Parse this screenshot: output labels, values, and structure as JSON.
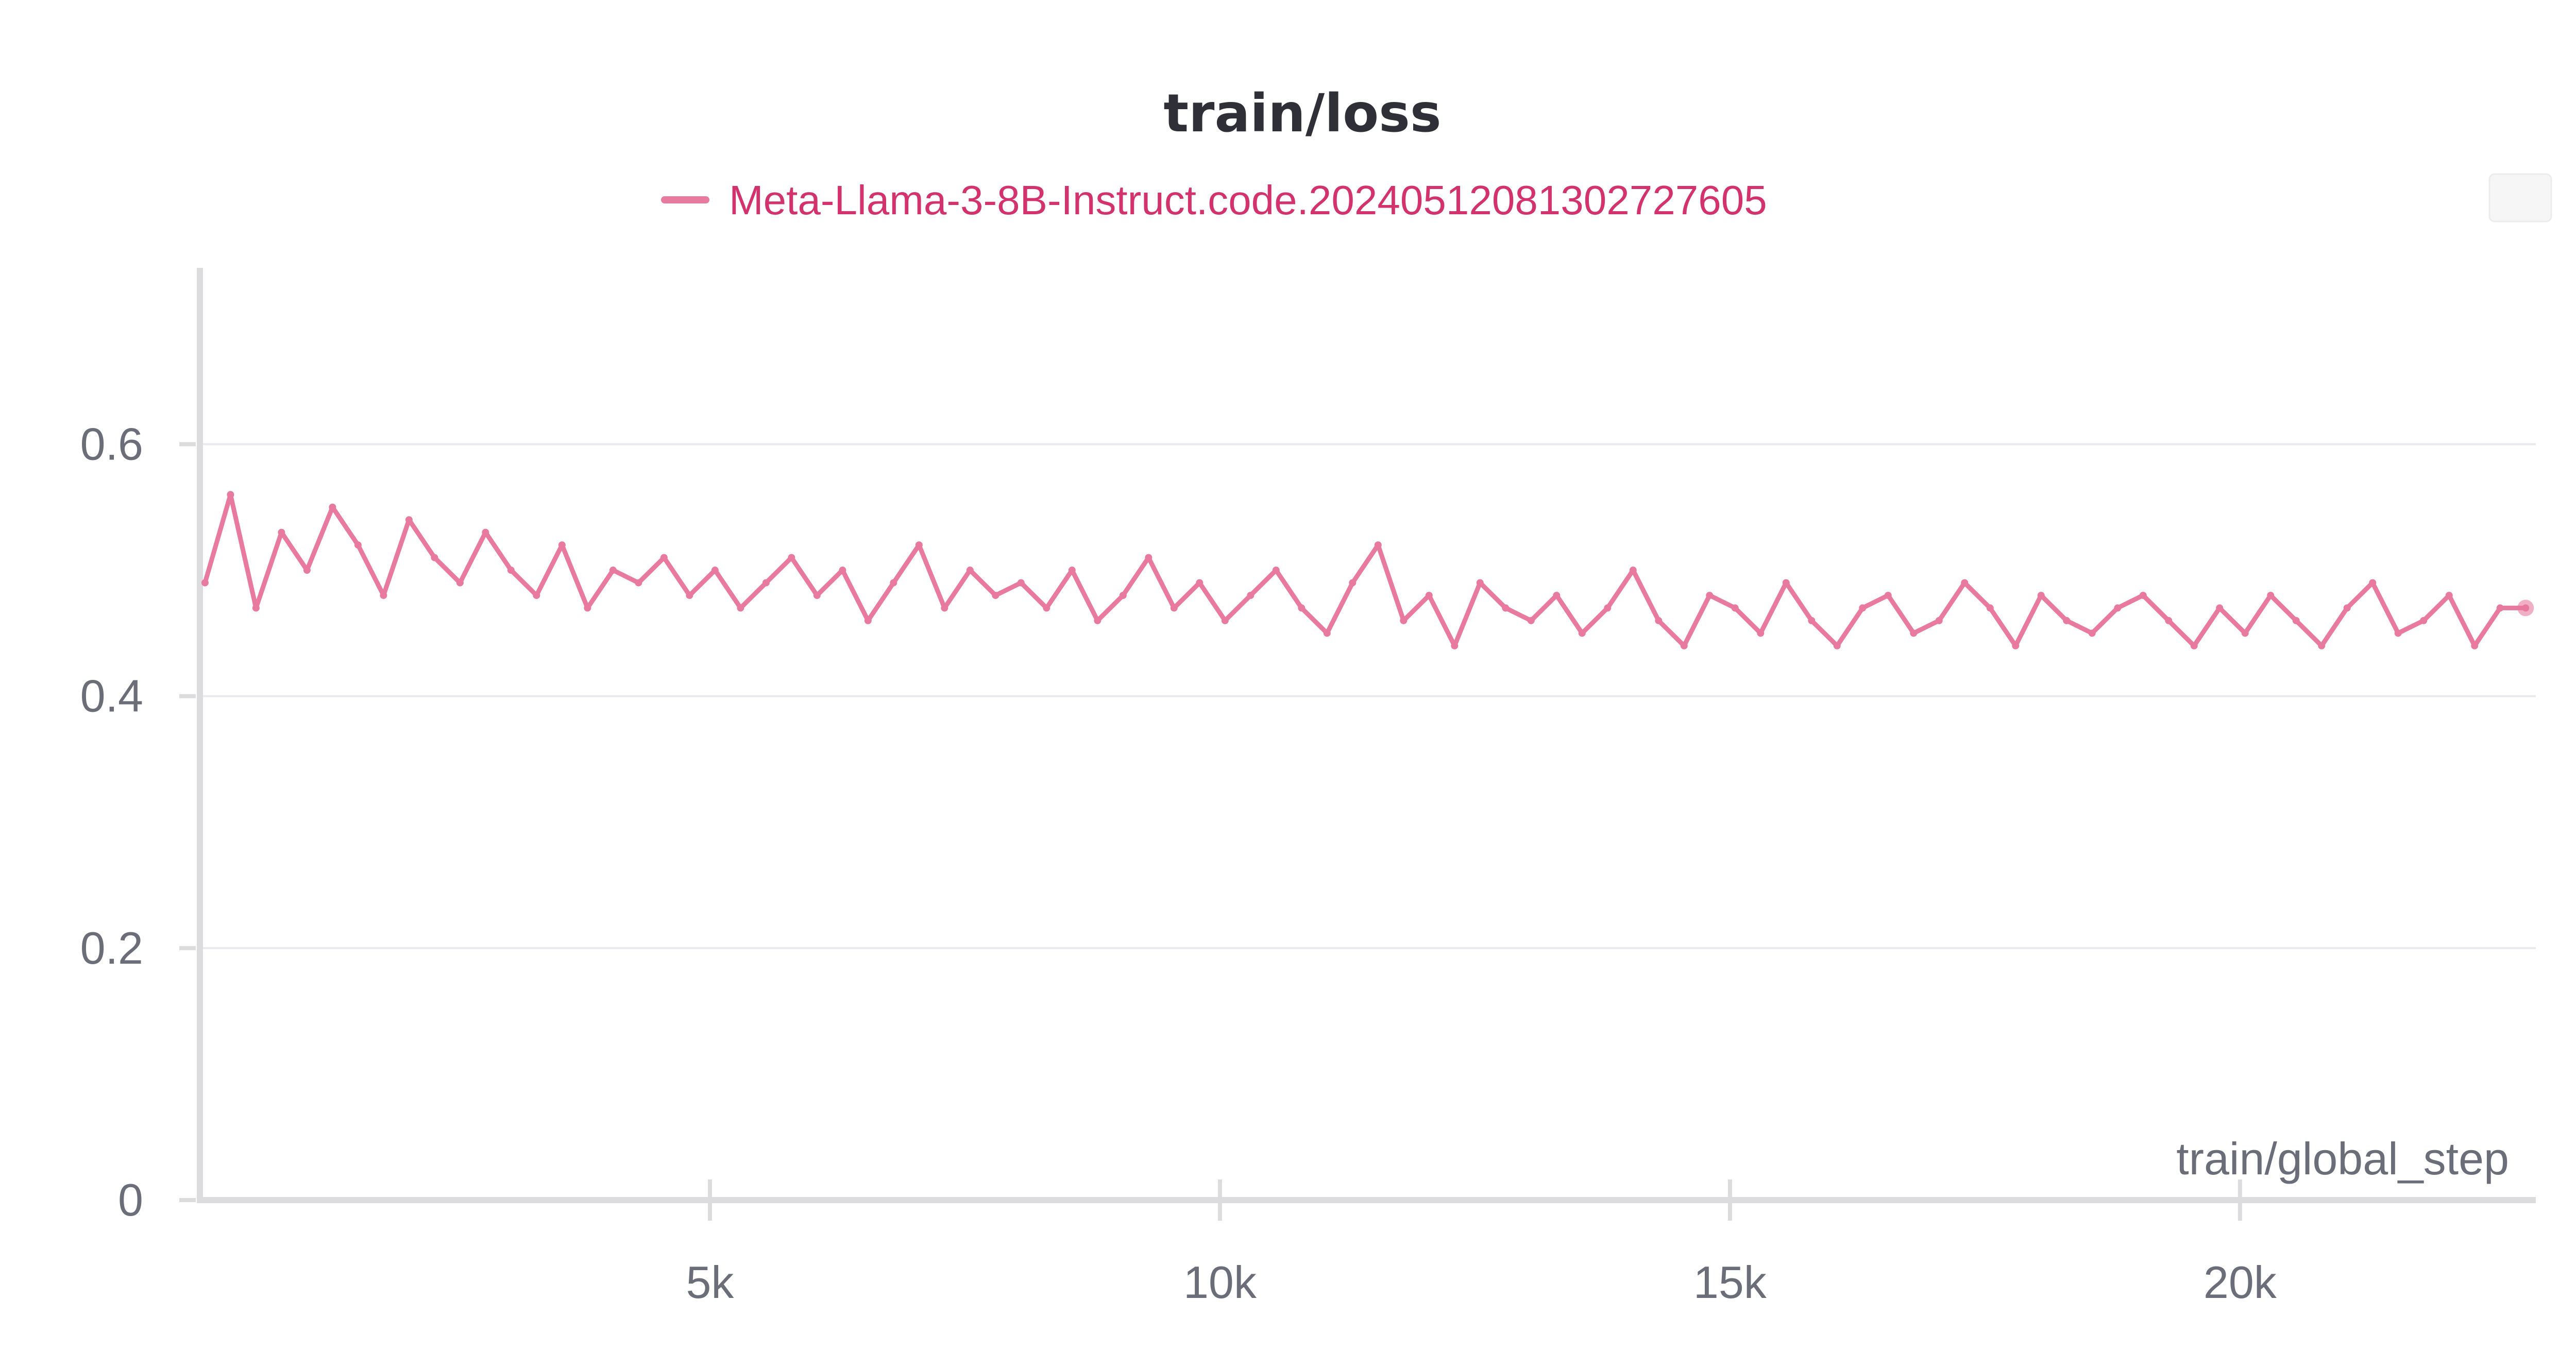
{
  "chart_data": {
    "type": "line",
    "title": "train/loss",
    "xlabel": "train/global_step",
    "ylabel": "",
    "xlim": [
      0,
      22900
    ],
    "ylim": [
      0,
      0.74
    ],
    "x_ticks": [
      {
        "value": 5000,
        "label": "5k"
      },
      {
        "value": 10000,
        "label": "10k"
      },
      {
        "value": 15000,
        "label": "15k"
      },
      {
        "value": 20000,
        "label": "20k"
      }
    ],
    "y_ticks": [
      {
        "value": 0,
        "label": "0"
      },
      {
        "value": 0.2,
        "label": "0.2"
      },
      {
        "value": 0.4,
        "label": "0.4"
      },
      {
        "value": 0.6,
        "label": "0.6"
      }
    ],
    "grid": true,
    "legend_position": "top-center",
    "series": [
      {
        "name": "Meta-Llama-3-8B-Instruct.code.20240512081302727605",
        "color": "#e8799f",
        "x": [
          50,
          300,
          550,
          800,
          1050,
          1300,
          1550,
          1800,
          2050,
          2300,
          2550,
          2800,
          3050,
          3300,
          3550,
          3800,
          4050,
          4300,
          4550,
          4800,
          5050,
          5300,
          5550,
          5800,
          6050,
          6300,
          6550,
          6800,
          7050,
          7300,
          7550,
          7800,
          8050,
          8300,
          8550,
          8800,
          9050,
          9300,
          9550,
          9800,
          10050,
          10300,
          10550,
          10800,
          11050,
          11300,
          11550,
          11800,
          12050,
          12300,
          12550,
          12800,
          13050,
          13300,
          13550,
          13800,
          14050,
          14300,
          14550,
          14800,
          15050,
          15300,
          15550,
          15800,
          16050,
          16300,
          16550,
          16800,
          17050,
          17300,
          17550,
          17800,
          18050,
          18300,
          18550,
          18800,
          19050,
          19300,
          19550,
          19800,
          20050,
          20300,
          20550,
          20800,
          21050,
          21300,
          21550,
          21800,
          22050,
          22300,
          22550,
          22800
        ],
        "y": [
          0.49,
          0.56,
          0.47,
          0.53,
          0.5,
          0.55,
          0.52,
          0.48,
          0.54,
          0.51,
          0.49,
          0.53,
          0.5,
          0.48,
          0.52,
          0.47,
          0.5,
          0.49,
          0.51,
          0.48,
          0.5,
          0.47,
          0.49,
          0.51,
          0.48,
          0.5,
          0.46,
          0.49,
          0.52,
          0.47,
          0.5,
          0.48,
          0.49,
          0.47,
          0.5,
          0.46,
          0.48,
          0.51,
          0.47,
          0.49,
          0.46,
          0.48,
          0.5,
          0.47,
          0.45,
          0.49,
          0.52,
          0.46,
          0.48,
          0.44,
          0.49,
          0.47,
          0.46,
          0.48,
          0.45,
          0.47,
          0.5,
          0.46,
          0.44,
          0.48,
          0.47,
          0.45,
          0.49,
          0.46,
          0.44,
          0.47,
          0.48,
          0.45,
          0.46,
          0.49,
          0.47,
          0.44,
          0.48,
          0.46,
          0.45,
          0.47,
          0.48,
          0.46,
          0.44,
          0.47,
          0.45,
          0.48,
          0.46,
          0.44,
          0.47,
          0.49,
          0.45,
          0.46,
          0.48,
          0.44,
          0.47,
          0.47
        ]
      }
    ]
  }
}
